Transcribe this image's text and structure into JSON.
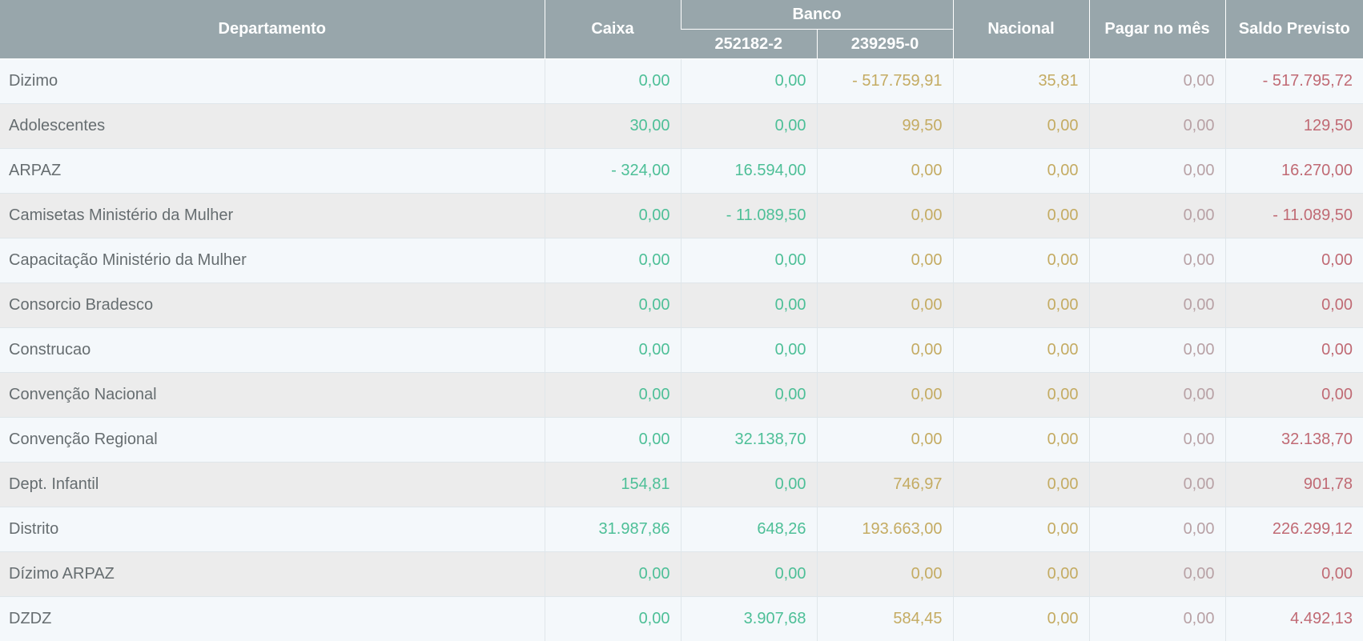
{
  "headers": {
    "departamento": "Departamento",
    "caixa": "Caixa",
    "banco": "Banco",
    "banco_conta_1": "252182-2",
    "banco_conta_2": "239295-0",
    "nacional": "Nacional",
    "pagar_no_mes": "Pagar no mês",
    "saldo_previsto": "Saldo Previsto"
  },
  "colors": {
    "header_bg": "#98a6ab",
    "header_text": "#ffffff",
    "caixa_banco1": "#4dbf97",
    "banco2_nacional": "#c4ab62",
    "pagar": "#b8a1a5",
    "saldo": "#c06a74"
  },
  "rows": [
    {
      "departamento": "Dizimo",
      "caixa": "0,00",
      "banco_1": "0,00",
      "banco_2": "- 517.759,91",
      "nacional": "35,81",
      "pagar": "0,00",
      "saldo": "- 517.795,72"
    },
    {
      "departamento": "Adolescentes",
      "caixa": "30,00",
      "banco_1": "0,00",
      "banco_2": "99,50",
      "nacional": "0,00",
      "pagar": "0,00",
      "saldo": "129,50"
    },
    {
      "departamento": "ARPAZ",
      "caixa": "- 324,00",
      "banco_1": "16.594,00",
      "banco_2": "0,00",
      "nacional": "0,00",
      "pagar": "0,00",
      "saldo": "16.270,00"
    },
    {
      "departamento": "Camisetas Ministério da Mulher",
      "caixa": "0,00",
      "banco_1": "- 11.089,50",
      "banco_2": "0,00",
      "nacional": "0,00",
      "pagar": "0,00",
      "saldo": "- 11.089,50"
    },
    {
      "departamento": "Capacitação Ministério da Mulher",
      "caixa": "0,00",
      "banco_1": "0,00",
      "banco_2": "0,00",
      "nacional": "0,00",
      "pagar": "0,00",
      "saldo": "0,00"
    },
    {
      "departamento": "Consorcio Bradesco",
      "caixa": "0,00",
      "banco_1": "0,00",
      "banco_2": "0,00",
      "nacional": "0,00",
      "pagar": "0,00",
      "saldo": "0,00"
    },
    {
      "departamento": "Construcao",
      "caixa": "0,00",
      "banco_1": "0,00",
      "banco_2": "0,00",
      "nacional": "0,00",
      "pagar": "0,00",
      "saldo": "0,00"
    },
    {
      "departamento": "Convenção Nacional",
      "caixa": "0,00",
      "banco_1": "0,00",
      "banco_2": "0,00",
      "nacional": "0,00",
      "pagar": "0,00",
      "saldo": "0,00"
    },
    {
      "departamento": "Convenção Regional",
      "caixa": "0,00",
      "banco_1": "32.138,70",
      "banco_2": "0,00",
      "nacional": "0,00",
      "pagar": "0,00",
      "saldo": "32.138,70"
    },
    {
      "departamento": "Dept. Infantil",
      "caixa": "154,81",
      "banco_1": "0,00",
      "banco_2": "746,97",
      "nacional": "0,00",
      "pagar": "0,00",
      "saldo": "901,78"
    },
    {
      "departamento": "Distrito",
      "caixa": "31.987,86",
      "banco_1": "648,26",
      "banco_2": "193.663,00",
      "nacional": "0,00",
      "pagar": "0,00",
      "saldo": "226.299,12"
    },
    {
      "departamento": "Dízimo ARPAZ",
      "caixa": "0,00",
      "banco_1": "0,00",
      "banco_2": "0,00",
      "nacional": "0,00",
      "pagar": "0,00",
      "saldo": "0,00"
    },
    {
      "departamento": "DZDZ",
      "caixa": "0,00",
      "banco_1": "3.907,68",
      "banco_2": "584,45",
      "nacional": "0,00",
      "pagar": "0,00",
      "saldo": "4.492,13"
    }
  ]
}
